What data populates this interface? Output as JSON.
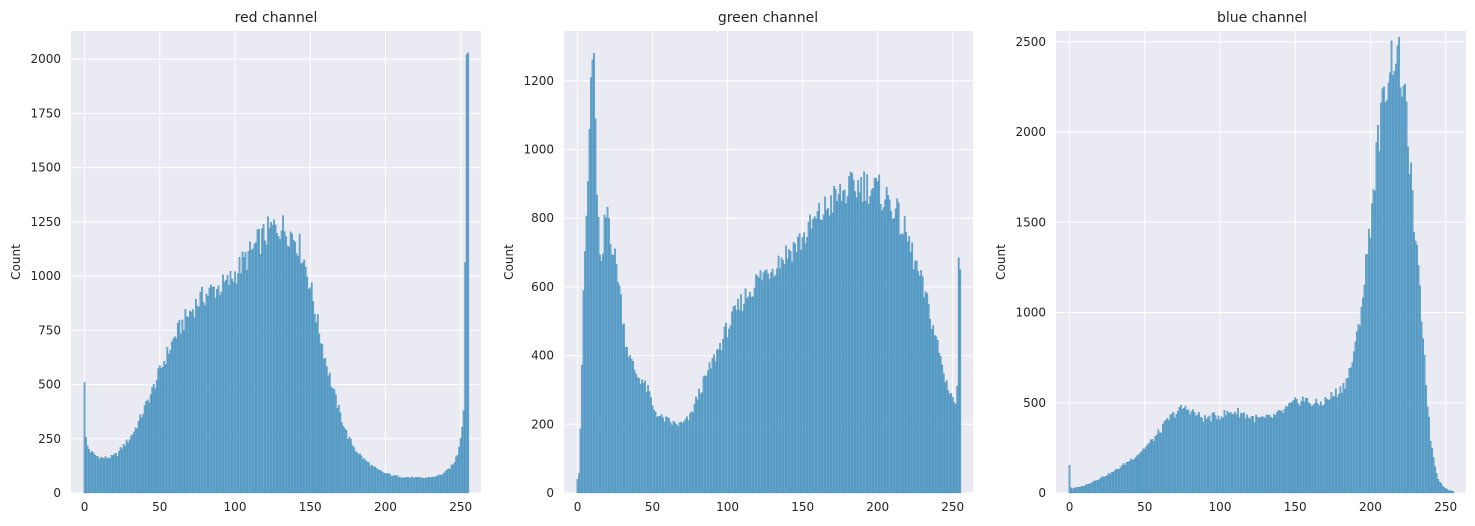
{
  "chart_data": [
    {
      "type": "bar",
      "title": "red channel",
      "xlabel": "",
      "ylabel": "Count",
      "xlim": [
        -9,
        263.5
      ],
      "ylim": [
        0,
        2130
      ],
      "xticks": [
        0,
        50,
        100,
        150,
        200,
        250
      ],
      "yticks": [
        0,
        250,
        500,
        750,
        1000,
        1250,
        1500,
        1750,
        2000
      ],
      "grid": true,
      "bar_color": "#4c9bc9",
      "anchors_x": [
        0,
        1,
        2,
        4,
        8,
        12,
        18,
        22,
        25,
        30,
        35,
        40,
        45,
        50,
        55,
        60,
        65,
        70,
        75,
        80,
        85,
        90,
        95,
        100,
        105,
        110,
        115,
        120,
        125,
        130,
        135,
        140,
        145,
        150,
        155,
        160,
        165,
        170,
        175,
        180,
        185,
        190,
        195,
        200,
        205,
        210,
        215,
        220,
        225,
        230,
        235,
        240,
        245,
        248,
        250,
        252,
        253,
        254,
        255
      ],
      "anchors_y": [
        510,
        250,
        215,
        190,
        170,
        160,
        165,
        180,
        210,
        250,
        310,
        390,
        470,
        560,
        640,
        720,
        780,
        830,
        880,
        910,
        935,
        950,
        965,
        1010,
        1060,
        1100,
        1150,
        1190,
        1220,
        1230,
        1210,
        1180,
        1100,
        960,
        780,
        620,
        480,
        360,
        260,
        200,
        160,
        130,
        105,
        90,
        80,
        75,
        72,
        70,
        68,
        72,
        78,
        95,
        130,
        180,
        260,
        380,
        1100,
        2030,
        2030
      ]
    },
    {
      "type": "bar",
      "title": "green channel",
      "xlabel": "",
      "ylabel": "Count",
      "xlim": [
        -9,
        263.5
      ],
      "ylim": [
        0,
        1345
      ],
      "xticks": [
        0,
        50,
        100,
        150,
        200,
        250
      ],
      "yticks": [
        0,
        200,
        400,
        600,
        800,
        1000,
        1200
      ],
      "grid": true,
      "bar_color": "#4c9bc9",
      "anchors_x": [
        0,
        1,
        2,
        3,
        4,
        5,
        6,
        7,
        8,
        9,
        10,
        11,
        12,
        13,
        14,
        15,
        16,
        17,
        18,
        19,
        20,
        21,
        22,
        23,
        24,
        25,
        26,
        27,
        28,
        30,
        32,
        35,
        38,
        40,
        43,
        45,
        48,
        50,
        55,
        60,
        65,
        70,
        75,
        80,
        85,
        90,
        95,
        100,
        110,
        120,
        130,
        140,
        150,
        160,
        170,
        180,
        190,
        200,
        210,
        220,
        230,
        235,
        240,
        245,
        250,
        252,
        253,
        254,
        255
      ],
      "anchors_y": [
        40,
        60,
        190,
        380,
        560,
        700,
        800,
        900,
        1050,
        1200,
        1280,
        1220,
        1050,
        900,
        780,
        680,
        640,
        700,
        770,
        800,
        830,
        800,
        760,
        730,
        700,
        680,
        660,
        640,
        600,
        520,
        450,
        390,
        360,
        340,
        330,
        310,
        290,
        250,
        220,
        210,
        200,
        200,
        220,
        280,
        330,
        380,
        430,
        480,
        560,
        620,
        660,
        700,
        740,
        800,
        850,
        880,
        900,
        880,
        840,
        740,
        600,
        520,
        430,
        330,
        280,
        250,
        320,
        650,
        650
      ]
    },
    {
      "type": "bar",
      "title": "blue channel",
      "xlabel": "",
      "ylabel": "Count",
      "xlim": [
        -9,
        263.5
      ],
      "ylim": [
        0,
        2560
      ],
      "xticks": [
        0,
        50,
        100,
        150,
        200,
        250
      ],
      "yticks": [
        0,
        500,
        1000,
        1500,
        2000,
        2500
      ],
      "grid": true,
      "bar_color": "#4c9bc9",
      "anchors_x": [
        0,
        1,
        2,
        5,
        10,
        15,
        20,
        25,
        30,
        35,
        40,
        45,
        50,
        55,
        60,
        65,
        70,
        75,
        80,
        85,
        90,
        95,
        100,
        105,
        110,
        115,
        120,
        125,
        130,
        135,
        140,
        145,
        150,
        155,
        160,
        165,
        170,
        175,
        180,
        185,
        190,
        195,
        200,
        205,
        210,
        213,
        215,
        217,
        220,
        225,
        228,
        230,
        233,
        235,
        238,
        240,
        243,
        245,
        248,
        250,
        252,
        255
      ],
      "anchors_y": [
        155,
        30,
        25,
        30,
        40,
        60,
        80,
        100,
        120,
        150,
        180,
        210,
        250,
        290,
        340,
        400,
        440,
        470,
        460,
        430,
        410,
        420,
        430,
        440,
        450,
        440,
        420,
        410,
        410,
        420,
        440,
        470,
        500,
        520,
        500,
        490,
        510,
        540,
        570,
        640,
        800,
        1100,
        1500,
        1950,
        2250,
        2380,
        2430,
        2450,
        2350,
        2000,
        1600,
        1400,
        1100,
        880,
        500,
        300,
        150,
        80,
        40,
        25,
        15,
        10
      ]
    }
  ]
}
